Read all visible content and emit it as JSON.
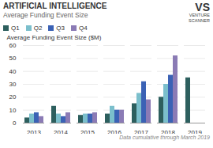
{
  "chart_data": {
    "type": "bar",
    "title": "ARTIFICIAL INTELLIGENCE",
    "subtitle": "Average Funding Event Size",
    "ylabel": "Average Funding Event Size ($M)",
    "annotations": [
      "Data cumulative through March 2019",
      "VS",
      "VENTURE\nSCANNER"
    ],
    "categories": [
      "2013",
      "2014",
      "2015",
      "2016",
      "2017",
      "2018",
      "2019"
    ],
    "series": [
      {
        "name": "Q1",
        "color": "#2d5f5e",
        "values": [
          4,
          13,
          6,
          7,
          15,
          20,
          35
        ]
      },
      {
        "name": "Q2",
        "color": "#7bbfcc",
        "values": [
          7,
          7,
          7,
          13,
          23,
          30,
          0
        ]
      },
      {
        "name": "Q3",
        "color": "#3b62b5",
        "values": [
          8,
          5,
          7,
          10,
          32,
          37,
          0
        ]
      },
      {
        "name": "Q4",
        "color": "#8b7bb5",
        "values": [
          5,
          8,
          8,
          10,
          18,
          52,
          0
        ]
      }
    ],
    "ylim": [
      0,
      60
    ],
    "yticks": [
      0,
      10,
      20,
      30,
      40,
      50,
      60
    ],
    "grid": true,
    "legend": "upper left"
  }
}
